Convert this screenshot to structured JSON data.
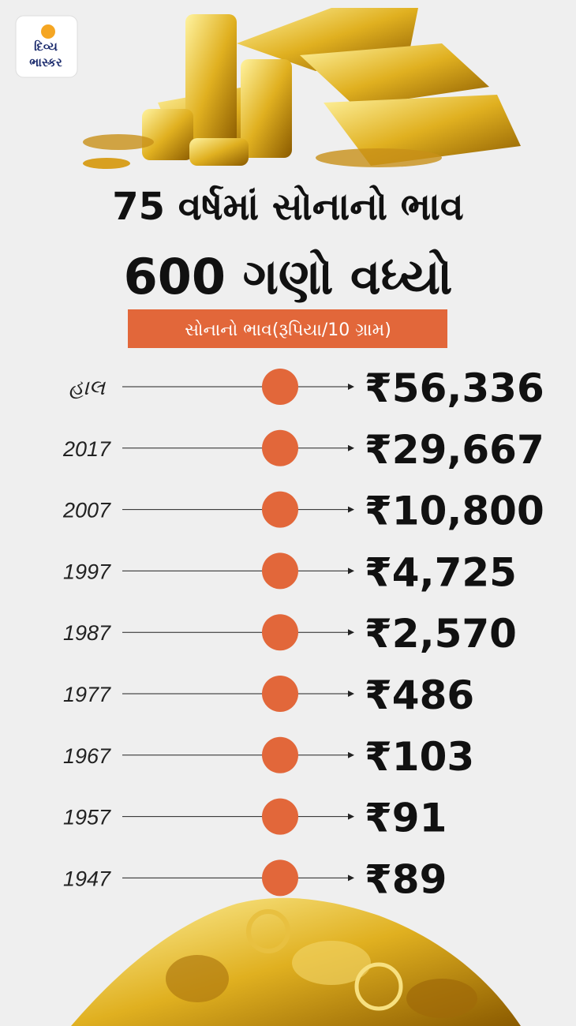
{
  "logo": {
    "line1": "દિવ્ય",
    "line2": "ભાસ્કર"
  },
  "header": {
    "title_line1": "75 વર્ષમાં સોનાનો ભાવ",
    "title_line2": "600 ગણો વધ્યો",
    "subtitle": "સોનાનો ભાવ(રૂપિયા/10 ગ્રામ)"
  },
  "rows": [
    {
      "label": "હાલ",
      "value": "₹56,336"
    },
    {
      "label": "2017",
      "value": "₹29,667"
    },
    {
      "label": "2007",
      "value": "₹10,800"
    },
    {
      "label": "1997",
      "value": "₹4,725"
    },
    {
      "label": "1987",
      "value": "₹2,570"
    },
    {
      "label": "1977",
      "value": "₹486"
    },
    {
      "label": "1967",
      "value": "₹103"
    },
    {
      "label": "1957",
      "value": "₹91"
    },
    {
      "label": "1947",
      "value": "₹89"
    }
  ]
}
